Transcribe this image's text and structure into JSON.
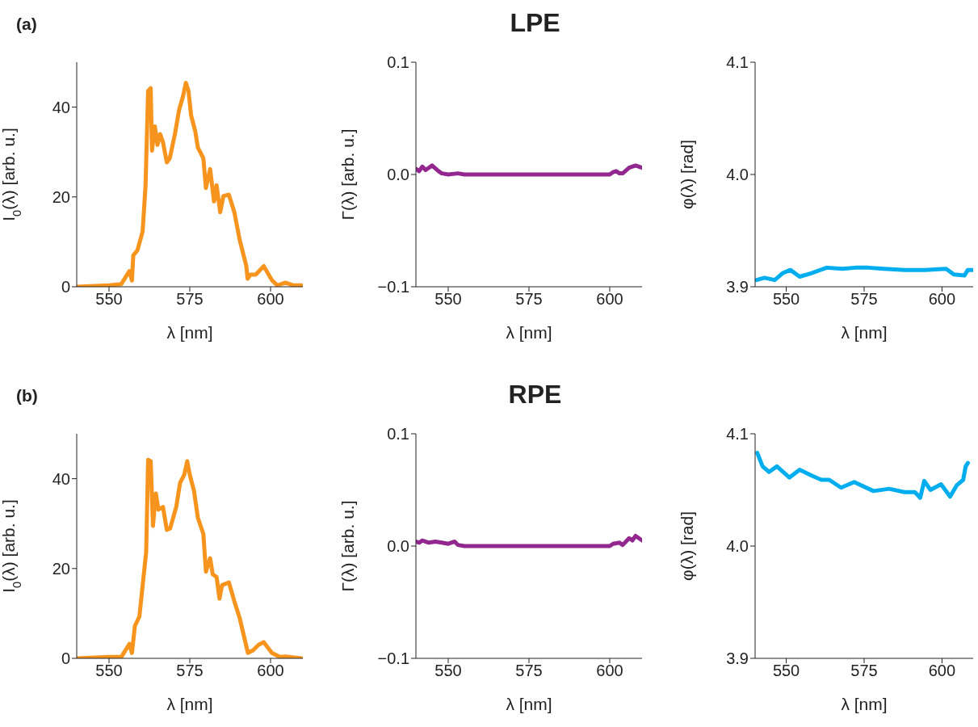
{
  "chart_data": [
    {
      "type": "line",
      "annotations": [
        "(a)"
      ],
      "xlabel": "λ [nm]",
      "ylabel": "I$_{0}$(λ) [arb. u.]",
      "xlim": [
        540,
        610
      ],
      "xticks": [
        550,
        575,
        600
      ],
      "ylim": [
        0,
        50
      ],
      "yticks": [
        0,
        20,
        40
      ],
      "x": [
        540,
        550,
        553.8,
        556.3,
        557.1,
        557.5,
        558.8,
        560.4,
        561.3,
        562.1,
        562.9,
        563.3,
        564.2,
        565,
        565.8,
        566.7,
        567.9,
        568.8,
        570.4,
        571.7,
        572.9,
        573.8,
        574.6,
        575.4,
        576.7,
        577.5,
        579.2,
        580,
        581.3,
        582.5,
        583.3,
        584.4,
        585.4,
        587.1,
        588.8,
        590.4,
        592.5,
        592.9,
        593.8,
        595.4,
        597.9,
        600.4,
        602.1,
        604.6,
        607.1,
        609.6
      ],
      "series": [
        {
          "color": "#f7941d",
          "values": [
            0,
            0.3,
            0.6,
            3.5,
            1.4,
            7,
            8.1,
            12.3,
            22.5,
            43.6,
            44.2,
            30.3,
            35.7,
            31.6,
            34,
            32.2,
            27.7,
            28.6,
            34,
            39.4,
            42.4,
            45.4,
            43.6,
            38.2,
            34.6,
            31,
            28.6,
            22,
            26.2,
            19,
            22.6,
            16.6,
            20.2,
            20.5,
            16.6,
            10.6,
            4.6,
            1.8,
            2.7,
            2.7,
            4.6,
            1.5,
            0.3,
            0.9,
            0.3,
            0.3
          ]
        }
      ]
    },
    {
      "type": "line",
      "title": "LPE",
      "xlabel": "λ [nm]",
      "ylabel": "Γ(λ) [arb. u.]",
      "xlim": [
        540,
        610
      ],
      "xticks": [
        550,
        575,
        600
      ],
      "ylim": [
        -0.1,
        0.1
      ],
      "yticks": [
        {
          "value": -0.1,
          "label": "−0.1"
        },
        {
          "value": 0,
          "label": "0.0"
        },
        0.1
      ],
      "x": [
        540,
        541,
        542,
        543,
        545,
        547,
        548,
        550,
        553,
        555,
        575,
        600,
        601,
        602,
        603,
        604,
        606,
        608,
        610
      ],
      "series": [
        {
          "color": "#92278f",
          "values": [
            0.005,
            0.003,
            0.007,
            0.004,
            0.008,
            0.003,
            0.001,
            0,
            0.001,
            0,
            0,
            0,
            0.002,
            0.003,
            0.001,
            0.001,
            0.006,
            0.008,
            0.006
          ]
        }
      ]
    },
    {
      "type": "line",
      "xlabel": "λ [nm]",
      "ylabel": "φ(λ) [rad]",
      "xlim": [
        540,
        610
      ],
      "xticks": [
        550,
        575,
        600
      ],
      "ylim": [
        3.9,
        4.1
      ],
      "yticks": [
        3.9,
        {
          "value": 4,
          "label": "4.0"
        },
        4.1
      ],
      "x": [
        540.5,
        543,
        546.3,
        548.8,
        551.3,
        554.3,
        558,
        563,
        568,
        572.2,
        576.3,
        581.3,
        588,
        594.7,
        601.3,
        603.8,
        607.2,
        608.3,
        610
      ],
      "series": [
        {
          "color": "#00aeef",
          "values": [
            3.906,
            3.908,
            3.906,
            3.912,
            3.915,
            3.909,
            3.912,
            3.917,
            3.916,
            3.917,
            3.917,
            3.916,
            3.915,
            3.915,
            3.916,
            3.911,
            3.91,
            3.915,
            3.915
          ]
        }
      ]
    },
    {
      "type": "line",
      "annotations": [
        "(b)"
      ],
      "xlabel": "λ [nm]",
      "ylabel": "I$_{0}$(λ) [arb. u.]",
      "xlim": [
        540,
        610
      ],
      "xticks": [
        550,
        575,
        600
      ],
      "ylim": [
        0,
        50
      ],
      "yticks": [
        0,
        20,
        40
      ],
      "x": [
        540,
        550,
        553.8,
        556.3,
        557.1,
        558,
        559.4,
        561.5,
        562.1,
        562.9,
        563.6,
        564.5,
        565.3,
        566.7,
        567.9,
        568.9,
        570.8,
        572,
        573.3,
        574.2,
        575,
        576.3,
        577.5,
        579.2,
        580,
        581.3,
        582.1,
        583.3,
        584.2,
        585,
        587.1,
        588.8,
        590.4,
        593,
        594.6,
        596.3,
        597.9,
        600.4,
        602.9,
        604.6,
        609.6
      ],
      "series": [
        {
          "color": "#f7941d",
          "values": [
            0,
            0.3,
            0.3,
            3.2,
            1.2,
            7.2,
            9.3,
            23.7,
            44.2,
            43.9,
            29.5,
            36.7,
            33.1,
            33.7,
            28.6,
            28.9,
            33.7,
            39.1,
            40.9,
            43.9,
            40.9,
            37.3,
            31.3,
            27.7,
            19.3,
            22.3,
            18.7,
            18.1,
            13.3,
            16.3,
            16.9,
            12.7,
            9.1,
            1.2,
            1.8,
            3,
            3.6,
            1.2,
            0.3,
            0.4,
            0
          ]
        }
      ]
    },
    {
      "type": "line",
      "title": "RPE",
      "xlabel": "λ [nm]",
      "ylabel": "Γ(λ) [arb. u.]",
      "xlim": [
        540,
        610
      ],
      "xticks": [
        550,
        575,
        600
      ],
      "ylim": [
        -0.1,
        0.1
      ],
      "yticks": [
        {
          "value": -0.1,
          "label": "−0.1"
        },
        {
          "value": 0,
          "label": "0.0"
        },
        0.1
      ],
      "x": [
        540,
        541,
        542,
        544,
        546,
        548,
        550,
        552,
        553,
        555,
        575,
        600,
        601,
        603,
        604,
        605,
        606,
        607,
        608,
        610
      ],
      "series": [
        {
          "color": "#92278f",
          "values": [
            0.004,
            0.003,
            0.005,
            0.003,
            0.004,
            0.003,
            0.002,
            0.004,
            0.001,
            0,
            0,
            0,
            0.002,
            0.003,
            0.001,
            0.004,
            0.007,
            0.005,
            0.009,
            0.005
          ]
        }
      ]
    },
    {
      "type": "line",
      "xlabel": "λ [nm]",
      "ylabel": "φ(λ) [rad]",
      "xlim": [
        540,
        610
      ],
      "xticks": [
        550,
        575,
        600
      ],
      "ylim": [
        3.9,
        4.1
      ],
      "yticks": [
        3.9,
        {
          "value": 4,
          "label": "4.0"
        },
        4.1
      ],
      "x": [
        540.7,
        542.4,
        544.5,
        547,
        551,
        554.3,
        558,
        561.3,
        563.8,
        567.6,
        571.8,
        578,
        583,
        588,
        591.3,
        593,
        594.3,
        596.3,
        599.7,
        602.6,
        604.7,
        606.8,
        607.6,
        608.3
      ],
      "series": [
        {
          "color": "#00aeef",
          "values": [
            4.083,
            4.071,
            4.066,
            4.071,
            4.061,
            4.068,
            4.063,
            4.059,
            4.059,
            4.052,
            4.057,
            4.049,
            4.051,
            4.048,
            4.048,
            4.043,
            4.058,
            4.05,
            4.055,
            4.044,
            4.054,
            4.059,
            4.071,
            4.074
          ]
        }
      ]
    }
  ]
}
